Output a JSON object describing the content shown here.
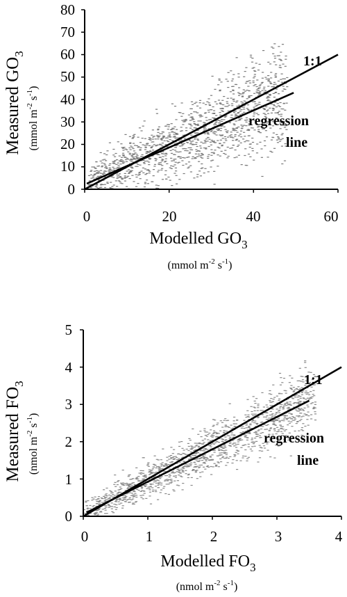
{
  "chart_data": [
    {
      "type": "scatter",
      "title": "",
      "xlabel": "Modelled GO",
      "xlabel_sub": "3",
      "xunit": "(mmol m-2 s-1)",
      "ylabel": "Measured GO",
      "ylabel_sub": "3",
      "yunit": "(mmol m-2 s-1)",
      "xlim": [
        0,
        60
      ],
      "ylim": [
        0,
        80
      ],
      "xticks": [
        "0",
        "20",
        "40",
        "60"
      ],
      "yticks": [
        "0",
        "10",
        "20",
        "30",
        "40",
        "50",
        "60",
        "70",
        "80"
      ],
      "grid": false,
      "lines": [
        {
          "label": "1:1",
          "x": [
            0,
            60
          ],
          "y": [
            0,
            60
          ]
        },
        {
          "label": "regression line",
          "x": [
            0.5,
            49.5
          ],
          "y": [
            2.5,
            43
          ]
        }
      ],
      "annotations": {
        "one_to_one": "1:1",
        "regression_1": "regression",
        "regression_2": "line"
      },
      "series": [
        {
          "n_points": 1400,
          "x_range": [
            1,
            48
          ],
          "slope": 0.82,
          "intercept": 2.5,
          "noise": 12,
          "y_range": [
            0,
            70
          ],
          "color": "#7a7a7a"
        }
      ]
    },
    {
      "type": "scatter",
      "title": "",
      "xlabel": "Modelled FO",
      "xlabel_sub": "3",
      "xunit": "(nmol m-2 s-1)",
      "ylabel": "Measured FO",
      "ylabel_sub": "3",
      "yunit": "(nmol m-2 s-1)",
      "xlim": [
        0,
        4
      ],
      "ylim": [
        0,
        5
      ],
      "xticks": [
        "0",
        "1",
        "2",
        "3",
        "4"
      ],
      "yticks": [
        "0",
        "1",
        "2",
        "3",
        "4",
        "5"
      ],
      "grid": false,
      "lines": [
        {
          "label": "1:1",
          "x": [
            0,
            4
          ],
          "y": [
            0,
            4
          ]
        },
        {
          "label": "regression line",
          "x": [
            0.05,
            3.5
          ],
          "y": [
            0.1,
            3.1
          ]
        }
      ],
      "annotations": {
        "one_to_one": "1:1",
        "regression_1": "regression",
        "regression_2": "line"
      },
      "series": [
        {
          "n_points": 1500,
          "x_range": [
            0,
            3.6
          ],
          "slope": 0.87,
          "intercept": 0.08,
          "noise": 0.45,
          "y_range": [
            0,
            4.5
          ],
          "color": "#8a8a8a"
        }
      ]
    }
  ]
}
